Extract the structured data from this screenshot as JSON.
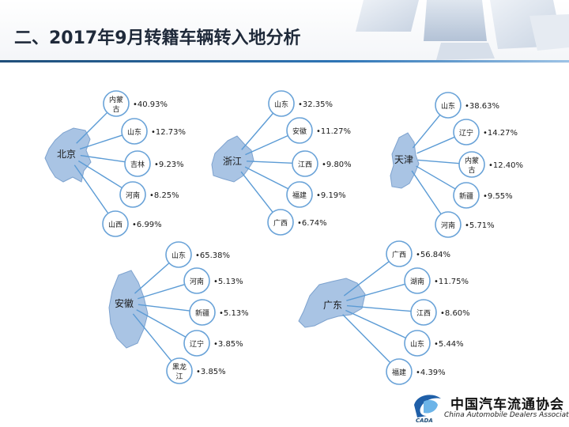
{
  "title": "二、2017年9月转籍车辆转入地分析",
  "logo": {
    "cn": "中国汽车流通协会",
    "en": "China Automobile Dealers Association",
    "mark": "CADA"
  },
  "colors": {
    "circle_fill": "#ffffff",
    "circle_stroke": "#6aa3d8",
    "connector": "#5b9bd5",
    "map_fill": "#a9c4e4",
    "map_stroke": "#7ea3cf",
    "label_text": "#1a1a1a",
    "title_text": "#1f2a3a"
  },
  "groups": [
    {
      "source": "北京",
      "destinations": [
        {
          "name": "内蒙古",
          "lines": [
            "内蒙",
            "古"
          ],
          "share": "•40.93%"
        },
        {
          "name": "山东",
          "lines": [
            "山东"
          ],
          "share": "•12.73%"
        },
        {
          "name": "吉林",
          "lines": [
            "吉林"
          ],
          "share": "•9.23%"
        },
        {
          "name": "河南",
          "lines": [
            "河南"
          ],
          "share": "•8.25%"
        },
        {
          "name": "山西",
          "lines": [
            "山西"
          ],
          "share": "•6.99%"
        }
      ]
    },
    {
      "source": "浙江",
      "destinations": [
        {
          "name": "山东",
          "lines": [
            "山东"
          ],
          "share": "•32.35%"
        },
        {
          "name": "安徽",
          "lines": [
            "安徽"
          ],
          "share": "•11.27%"
        },
        {
          "name": "江西",
          "lines": [
            "江西"
          ],
          "share": "•9.80%"
        },
        {
          "name": "福建",
          "lines": [
            "福建"
          ],
          "share": "•9.19%"
        },
        {
          "name": "广西",
          "lines": [
            "广西"
          ],
          "share": "•6.74%"
        }
      ]
    },
    {
      "source": "天津",
      "destinations": [
        {
          "name": "山东",
          "lines": [
            "山东"
          ],
          "share": "•38.63%"
        },
        {
          "name": "辽宁",
          "lines": [
            "辽宁"
          ],
          "share": "•14.27%"
        },
        {
          "name": "内蒙古",
          "lines": [
            "内蒙",
            "古"
          ],
          "share": "•12.40%"
        },
        {
          "name": "新疆",
          "lines": [
            "新疆"
          ],
          "share": "•9.55%"
        },
        {
          "name": "河南",
          "lines": [
            "河南"
          ],
          "share": "•5.71%"
        }
      ]
    },
    {
      "source": "安徽",
      "destinations": [
        {
          "name": "山东",
          "lines": [
            "山东"
          ],
          "share": "•65.38%"
        },
        {
          "name": "河南",
          "lines": [
            "河南"
          ],
          "share": "•5.13%"
        },
        {
          "name": "新疆",
          "lines": [
            "新疆"
          ],
          "share": "•5.13%"
        },
        {
          "name": "辽宁",
          "lines": [
            "辽宁"
          ],
          "share": "•3.85%"
        },
        {
          "name": "黑龙江",
          "lines": [
            "黑龙",
            "江"
          ],
          "share": "•3.85%"
        }
      ]
    },
    {
      "source": "广东",
      "destinations": [
        {
          "name": "广西",
          "lines": [
            "广西"
          ],
          "share": "•56.84%"
        },
        {
          "name": "湖南",
          "lines": [
            "湖南"
          ],
          "share": "•11.75%"
        },
        {
          "name": "江西",
          "lines": [
            "江西"
          ],
          "share": "•8.60%"
        },
        {
          "name": "山东",
          "lines": [
            "山东"
          ],
          "share": "•5.44%"
        },
        {
          "name": "福建",
          "lines": [
            "福建"
          ],
          "share": "•4.39%"
        }
      ]
    }
  ]
}
